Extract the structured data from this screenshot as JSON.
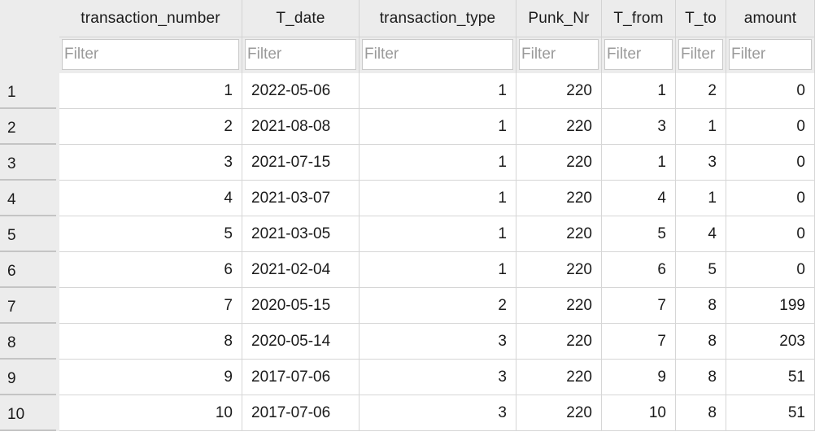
{
  "table": {
    "columns": [
      {
        "key": "transaction_number",
        "label": "transaction_number",
        "align": "right"
      },
      {
        "key": "T_date",
        "label": "T_date",
        "align": "left"
      },
      {
        "key": "transaction_type",
        "label": "transaction_type",
        "align": "right"
      },
      {
        "key": "Punk_Nr",
        "label": "Punk_Nr",
        "align": "right"
      },
      {
        "key": "T_from",
        "label": "T_from",
        "align": "right"
      },
      {
        "key": "T_to",
        "label": "T_to",
        "align": "right"
      },
      {
        "key": "amount",
        "label": "amount",
        "align": "right"
      }
    ],
    "filter_placeholder": "Filter",
    "row_labels": [
      "1",
      "2",
      "3",
      "4",
      "5",
      "6",
      "7",
      "8",
      "9",
      "10"
    ],
    "rows": [
      [
        "1",
        "2022-05-06",
        "1",
        "220",
        "1",
        "2",
        "0"
      ],
      [
        "2",
        "2021-08-08",
        "1",
        "220",
        "3",
        "1",
        "0"
      ],
      [
        "3",
        "2021-07-15",
        "1",
        "220",
        "1",
        "3",
        "0"
      ],
      [
        "4",
        "2021-03-07",
        "1",
        "220",
        "4",
        "1",
        "0"
      ],
      [
        "5",
        "2021-03-05",
        "1",
        "220",
        "5",
        "4",
        "0"
      ],
      [
        "6",
        "2021-02-04",
        "1",
        "220",
        "6",
        "5",
        "0"
      ],
      [
        "7",
        "2020-05-15",
        "2",
        "220",
        "7",
        "8",
        "199"
      ],
      [
        "8",
        "2020-05-14",
        "3",
        "220",
        "7",
        "8",
        "203"
      ],
      [
        "9",
        "2017-07-06",
        "3",
        "220",
        "9",
        "8",
        "51"
      ],
      [
        "10",
        "2017-07-06",
        "3",
        "220",
        "10",
        "8",
        "51"
      ]
    ]
  }
}
